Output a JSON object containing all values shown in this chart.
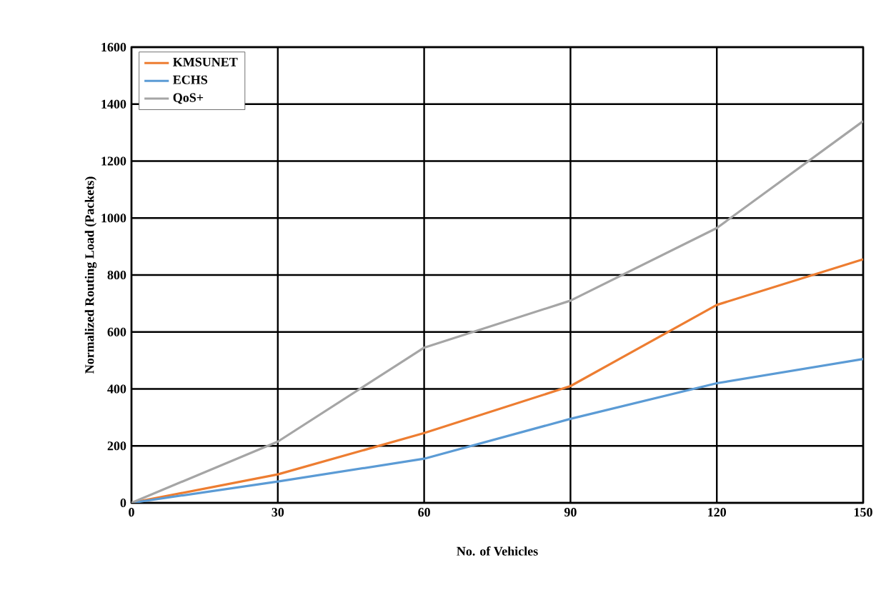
{
  "chart_data": {
    "type": "line",
    "xlabel": "No. of Vehicles",
    "ylabel": "Normalized Routing Load (Packets)",
    "x": [
      0,
      30,
      60,
      90,
      120,
      150
    ],
    "series": [
      {
        "name": "KMSUNET",
        "color": "#ed7d31",
        "values": [
          0,
          100,
          245,
          410,
          695,
          855
        ]
      },
      {
        "name": "ECHS",
        "color": "#5b9bd5",
        "values": [
          0,
          75,
          155,
          295,
          420,
          505
        ]
      },
      {
        "name": "QoS+",
        "color": "#a5a5a5",
        "values": [
          0,
          215,
          545,
          710,
          965,
          1340
        ]
      }
    ],
    "xlim": [
      0,
      150
    ],
    "ylim": [
      0,
      1600
    ],
    "xticks": [
      0,
      30,
      60,
      90,
      120,
      150
    ],
    "yticks": [
      0,
      200,
      400,
      600,
      800,
      1000,
      1200,
      1400,
      1600
    ],
    "grid": true,
    "legend": "top left",
    "marker": "none",
    "line_style": "solid"
  }
}
